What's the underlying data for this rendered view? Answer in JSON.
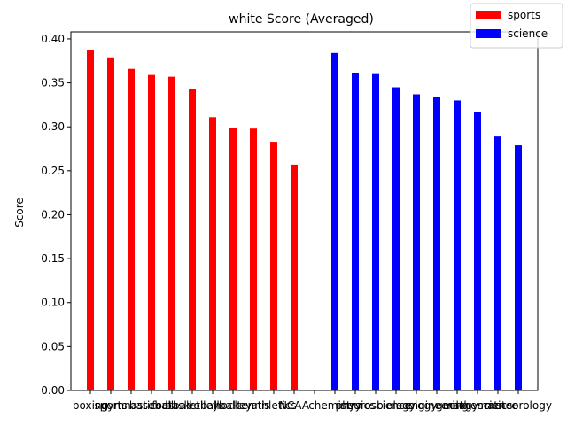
{
  "chart_data": {
    "type": "bar",
    "title": "white Score (Averaged)",
    "xlabel": "",
    "ylabel": "Score",
    "ylim": [
      0,
      0.408
    ],
    "yticks": [
      0.0,
      0.05,
      0.1,
      0.15,
      0.2,
      0.25,
      0.3,
      0.35,
      0.4
    ],
    "ytick_labels": [
      "0.00",
      "0.05",
      "0.10",
      "0.15",
      "0.20",
      "0.25",
      "0.30",
      "0.35",
      "0.40"
    ],
    "grid": false,
    "legend_position": "top-right",
    "categories": [
      "boxing",
      "sports",
      "gymnastics",
      "baseball",
      "football",
      "basketball",
      "volleyball",
      "hockey",
      "tennis",
      "athletics",
      "NCAA",
      "",
      "chemistry",
      "physics",
      "neuroscience",
      "biology",
      "ecology",
      "engineering",
      "geology",
      "mathematics",
      "science",
      "meteorology"
    ],
    "series": [
      {
        "name": "sports",
        "color": "#ff0000",
        "values": [
          0.387,
          0.379,
          0.366,
          0.359,
          0.357,
          0.343,
          0.311,
          0.299,
          0.298,
          0.283,
          0.257,
          null,
          null,
          null,
          null,
          null,
          null,
          null,
          null,
          null,
          null,
          null
        ]
      },
      {
        "name": "science",
        "color": "#0000ff",
        "values": [
          null,
          null,
          null,
          null,
          null,
          null,
          null,
          null,
          null,
          null,
          null,
          null,
          0.384,
          0.361,
          0.36,
          0.345,
          0.337,
          0.334,
          0.33,
          0.317,
          0.289,
          0.279
        ]
      }
    ]
  }
}
